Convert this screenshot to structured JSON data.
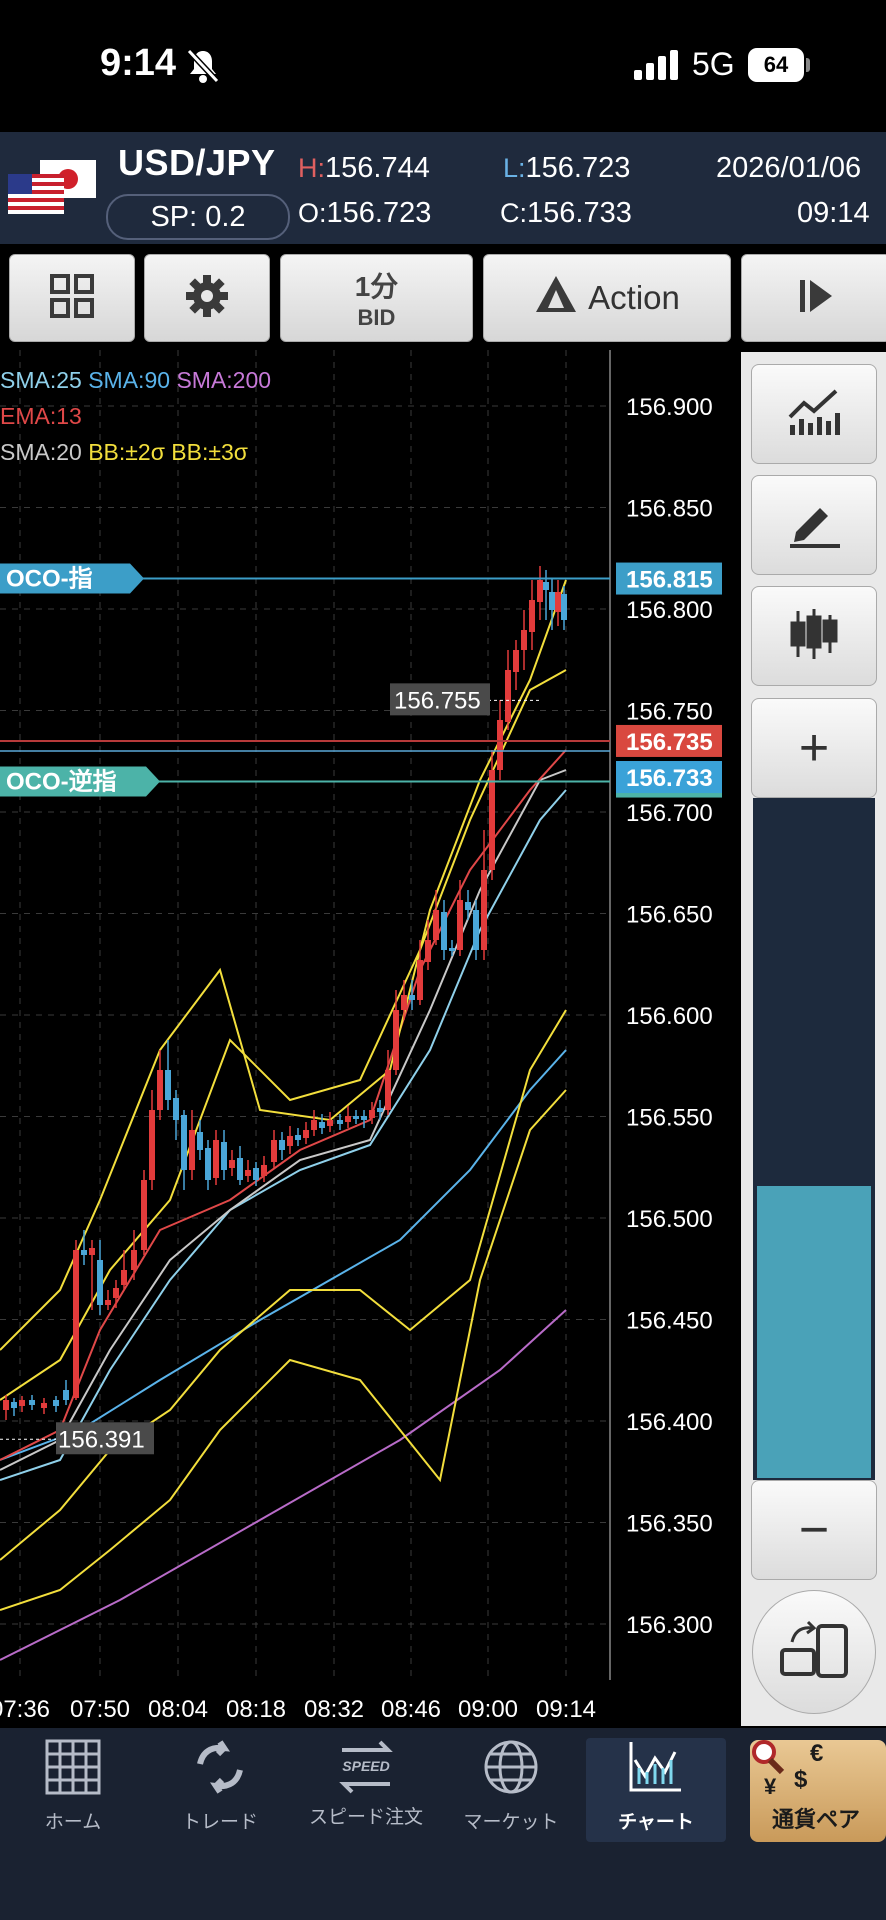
{
  "status": {
    "time": "9:14",
    "network": "5G",
    "battery": "64"
  },
  "header": {
    "pair": "USD/JPY",
    "spread": "SP: 0.2",
    "high_key": "H:",
    "high": "156.744",
    "low_key": "L:",
    "low": "156.723",
    "open_key": "O:",
    "open": "156.723",
    "close_key": "C:",
    "close": "156.733",
    "date": "2026/01/06",
    "time": "09:14"
  },
  "toolbar": {
    "timeframe": "1分",
    "price_type": "BID",
    "action_label": "Action"
  },
  "legend": {
    "sma25": "SMA:25",
    "sma90": "SMA:90",
    "sma200": "SMA:200",
    "ema13": "EMA:13",
    "sma20": "SMA:20",
    "bb2": "BB:±2σ",
    "bb3": "BB:±3σ"
  },
  "colors": {
    "sma25": "#8fd0ea",
    "sma90": "#5ab3ea",
    "sma200": "#b86bc8",
    "ema13": "#e04848",
    "sma20": "#c8c8c8",
    "bb": "#f2de3c",
    "bull_candle": "#e23b3b",
    "bear_candle": "#4aa6d8",
    "oco_line": "#3c9ec8",
    "oco_stop": "#4cb3a8",
    "bid_tag": "#d9483f"
  },
  "chart_data": {
    "type": "candlestick",
    "y_ticks": [
      "156.900",
      "156.850",
      "156.800",
      "156.750",
      "156.700",
      "156.650",
      "156.600",
      "156.550",
      "156.500",
      "156.450",
      "156.400",
      "156.350",
      "156.300"
    ],
    "x_ticks": [
      "07:36",
      "07:50",
      "08:04",
      "08:18",
      "08:32",
      "08:46",
      "09:00",
      "09:14"
    ],
    "ylim": [
      156.28,
      156.92
    ],
    "orders": [
      {
        "label": "OCO-指",
        "price": "156.815"
      },
      {
        "label": "OCO-逆指",
        "price": "156.715"
      }
    ],
    "current_bid": "156.735",
    "current_ask": "156.733",
    "peak_label": "156.755",
    "low_label": "156.391",
    "grid": true
  },
  "nav": {
    "home": "ホーム",
    "trade": "トレード",
    "speed": "スピード注文",
    "speed_badge": "SPEED",
    "market": "マーケット",
    "chart": "チャート",
    "pairs": "通貨ペア",
    "pairs_symbols": [
      "€",
      "$",
      "¥"
    ]
  }
}
